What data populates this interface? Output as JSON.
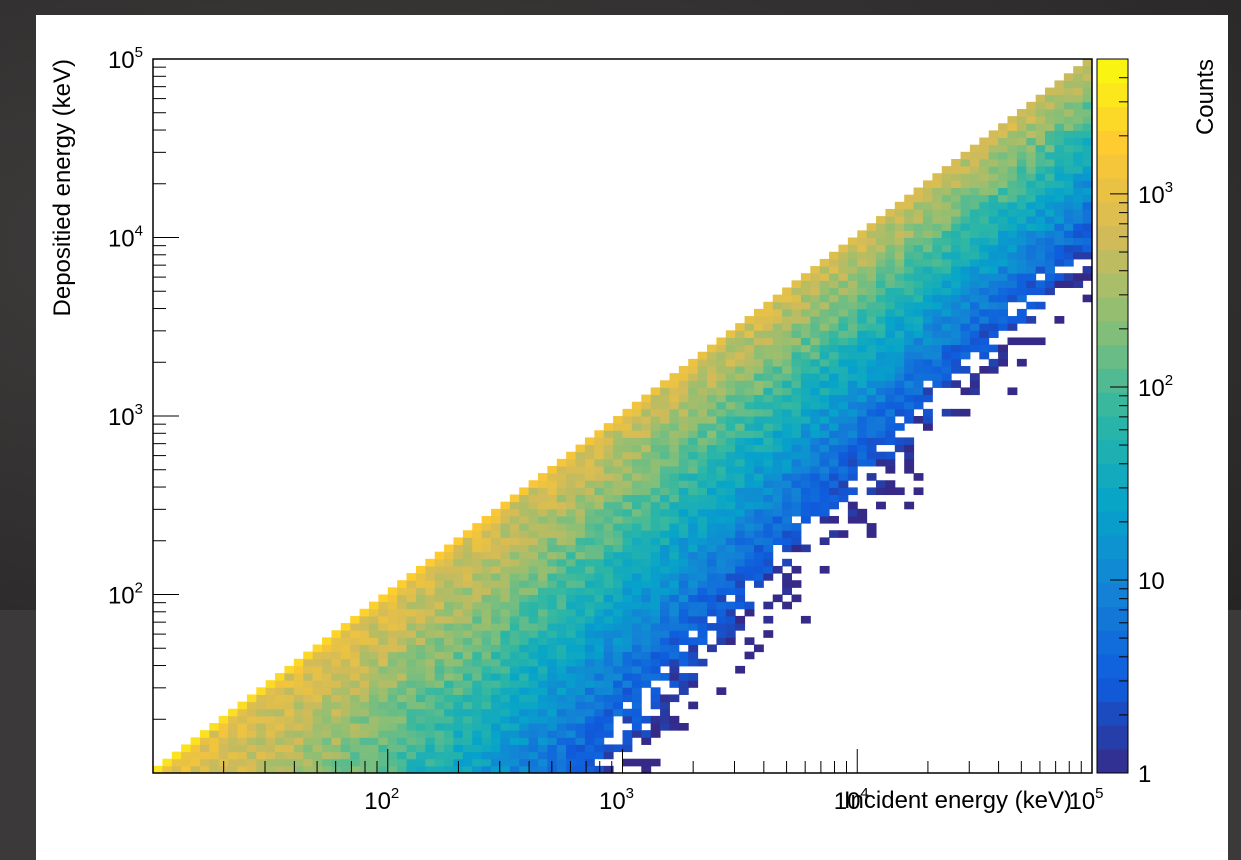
{
  "chart_data": {
    "type": "heatmap",
    "title": "",
    "xlabel": "Incident energy (keV)",
    "ylabel": "Depositied energy (keV)",
    "zlabel": "Counts",
    "x_scale": "log",
    "y_scale": "log",
    "z_scale": "log",
    "xlim": [
      10,
      100000
    ],
    "ylim": [
      10,
      100000
    ],
    "zlim": [
      1,
      5000
    ],
    "grid": false,
    "x_ticks": [
      {
        "base": "10",
        "exp": "2",
        "value": 100
      },
      {
        "base": "10",
        "exp": "3",
        "value": 1000
      },
      {
        "base": "10",
        "exp": "4",
        "value": 10000
      },
      {
        "base": "10",
        "exp": "5",
        "value": 100000
      }
    ],
    "y_ticks": [
      {
        "base": "10",
        "exp": "2",
        "value": 100
      },
      {
        "base": "10",
        "exp": "3",
        "value": 1000
      },
      {
        "base": "10",
        "exp": "4",
        "value": 10000
      },
      {
        "base": "10",
        "exp": "5",
        "value": 100000
      }
    ],
    "z_ticks": [
      {
        "base": "1",
        "exp": "",
        "value": 1
      },
      {
        "base": "10",
        "exp": "",
        "value": 10
      },
      {
        "base": "10",
        "exp": "2",
        "value": 100
      },
      {
        "base": "10",
        "exp": "3",
        "value": 1000
      }
    ],
    "bins_per_decade": 25,
    "diagonal_counts": 5000,
    "palette": [
      "#352a87",
      "#0f5cdd",
      "#1481d6",
      "#06a4ca",
      "#2eb7a4",
      "#87bf77",
      "#d1bb59",
      "#fec832",
      "#f9fb0e"
    ],
    "description_note": "Counts concentrate along the full-deposition diagonal (deposited = incident) and fall off toward low deposited energy; white bins have zero counts."
  }
}
